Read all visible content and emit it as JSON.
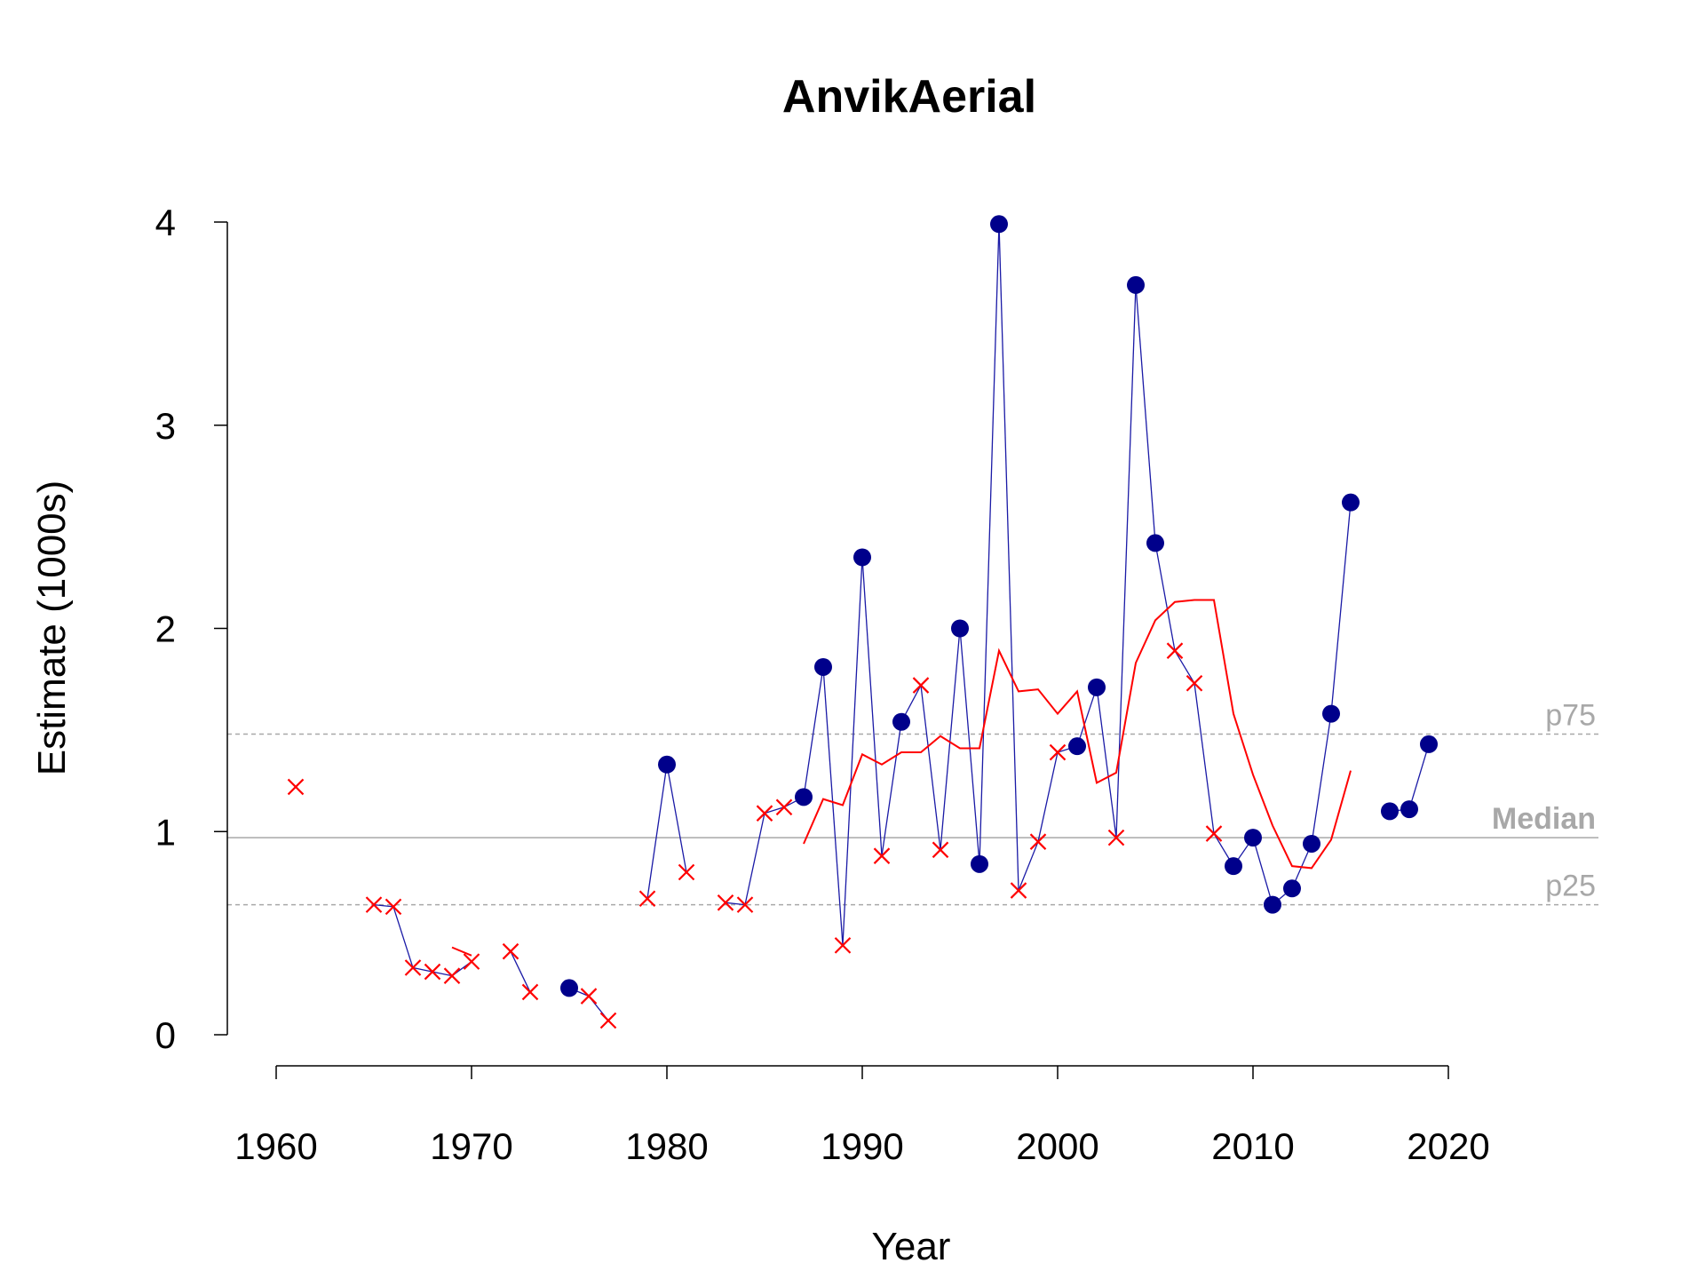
{
  "chart_data": {
    "type": "line",
    "title": "AnvikAerial",
    "xlabel": "Year",
    "ylabel": "Estimate (1000s)",
    "xlim": [
      1958,
      2028
    ],
    "ylim": [
      0,
      4
    ],
    "x_ticks": [
      1960,
      1970,
      1980,
      1990,
      2000,
      2010,
      2020
    ],
    "y_ticks": [
      0,
      1,
      2,
      3,
      4
    ],
    "colors": {
      "observed_line": "#1a1aa6",
      "full_count": "#00008b",
      "partial_count": "#ff0000",
      "running_average": "#ff0000",
      "reference": "#a8a8a8"
    },
    "reference_lines": [
      {
        "label": "p75",
        "value": 1.48,
        "style": "dashed",
        "bold": false
      },
      {
        "label": "Median",
        "value": 0.97,
        "style": "solid",
        "bold": true
      },
      {
        "label": "p25",
        "value": 0.64,
        "style": "dashed",
        "bold": false
      }
    ],
    "series": [
      {
        "kind": "observed",
        "points": [
          {
            "x": 1961,
            "y": 1.22,
            "marker": "x"
          },
          {
            "x": 1965,
            "y": 0.64,
            "marker": "x"
          },
          {
            "x": 1966,
            "y": 0.63,
            "marker": "x"
          },
          {
            "x": 1967,
            "y": 0.33,
            "marker": "x"
          },
          {
            "x": 1968,
            "y": 0.31,
            "marker": "x"
          },
          {
            "x": 1969,
            "y": 0.29,
            "marker": "x"
          },
          {
            "x": 1970,
            "y": 0.36,
            "marker": "x"
          },
          {
            "x": 1972,
            "y": 0.41,
            "marker": "x"
          },
          {
            "x": 1973,
            "y": 0.21,
            "marker": "x"
          },
          {
            "x": 1975,
            "y": 0.23,
            "marker": "dot"
          },
          {
            "x": 1976,
            "y": 0.19,
            "marker": "x"
          },
          {
            "x": 1977,
            "y": 0.07,
            "marker": "x"
          },
          {
            "x": 1979,
            "y": 0.67,
            "marker": "x"
          },
          {
            "x": 1980,
            "y": 1.33,
            "marker": "dot"
          },
          {
            "x": 1981,
            "y": 0.8,
            "marker": "x"
          },
          {
            "x": 1983,
            "y": 0.65,
            "marker": "x"
          },
          {
            "x": 1984,
            "y": 0.64,
            "marker": "x"
          },
          {
            "x": 1985,
            "y": 1.09,
            "marker": "x"
          },
          {
            "x": 1986,
            "y": 1.12,
            "marker": "x"
          },
          {
            "x": 1987,
            "y": 1.17,
            "marker": "dot"
          },
          {
            "x": 1988,
            "y": 1.81,
            "marker": "dot"
          },
          {
            "x": 1989,
            "y": 0.44,
            "marker": "x"
          },
          {
            "x": 1990,
            "y": 2.35,
            "marker": "dot"
          },
          {
            "x": 1991,
            "y": 0.88,
            "marker": "x"
          },
          {
            "x": 1992,
            "y": 1.54,
            "marker": "dot"
          },
          {
            "x": 1993,
            "y": 1.72,
            "marker": "x"
          },
          {
            "x": 1994,
            "y": 0.91,
            "marker": "x"
          },
          {
            "x": 1995,
            "y": 2.0,
            "marker": "dot"
          },
          {
            "x": 1996,
            "y": 0.84,
            "marker": "dot"
          },
          {
            "x": 1997,
            "y": 3.99,
            "marker": "dot"
          },
          {
            "x": 1998,
            "y": 0.71,
            "marker": "x"
          },
          {
            "x": 1999,
            "y": 0.95,
            "marker": "x"
          },
          {
            "x": 2000,
            "y": 1.39,
            "marker": "x"
          },
          {
            "x": 2001,
            "y": 1.42,
            "marker": "dot"
          },
          {
            "x": 2002,
            "y": 1.71,
            "marker": "dot"
          },
          {
            "x": 2003,
            "y": 0.97,
            "marker": "x"
          },
          {
            "x": 2004,
            "y": 3.69,
            "marker": "dot"
          },
          {
            "x": 2005,
            "y": 2.42,
            "marker": "dot"
          },
          {
            "x": 2006,
            "y": 1.89,
            "marker": "x"
          },
          {
            "x": 2007,
            "y": 1.73,
            "marker": "x"
          },
          {
            "x": 2008,
            "y": 0.99,
            "marker": "x"
          },
          {
            "x": 2009,
            "y": 0.83,
            "marker": "dot"
          },
          {
            "x": 2010,
            "y": 0.97,
            "marker": "dot"
          },
          {
            "x": 2011,
            "y": 0.64,
            "marker": "dot"
          },
          {
            "x": 2012,
            "y": 0.72,
            "marker": "dot"
          },
          {
            "x": 2013,
            "y": 0.94,
            "marker": "dot"
          },
          {
            "x": 2014,
            "y": 1.58,
            "marker": "dot"
          },
          {
            "x": 2015,
            "y": 2.62,
            "marker": "dot"
          },
          {
            "x": 2017,
            "y": 1.1,
            "marker": "dot"
          },
          {
            "x": 2018,
            "y": 1.11,
            "marker": "dot"
          },
          {
            "x": 2019,
            "y": 1.43,
            "marker": "dot"
          }
        ]
      },
      {
        "kind": "running-average",
        "segments": [
          [
            {
              "x": 1969,
              "y": 0.43
            },
            {
              "x": 1970,
              "y": 0.39
            }
          ],
          [
            {
              "x": 1987,
              "y": 0.94
            },
            {
              "x": 1988,
              "y": 1.16
            },
            {
              "x": 1989,
              "y": 1.13
            },
            {
              "x": 1990,
              "y": 1.38
            },
            {
              "x": 1991,
              "y": 1.33
            },
            {
              "x": 1992,
              "y": 1.39
            },
            {
              "x": 1993,
              "y": 1.39
            },
            {
              "x": 1994,
              "y": 1.47
            },
            {
              "x": 1995,
              "y": 1.41
            },
            {
              "x": 1996,
              "y": 1.41
            },
            {
              "x": 1997,
              "y": 1.89
            },
            {
              "x": 1998,
              "y": 1.69
            },
            {
              "x": 1999,
              "y": 1.7
            },
            {
              "x": 2000,
              "y": 1.58
            },
            {
              "x": 2001,
              "y": 1.69
            },
            {
              "x": 2002,
              "y": 1.24
            },
            {
              "x": 2003,
              "y": 1.29
            },
            {
              "x": 2004,
              "y": 1.83
            },
            {
              "x": 2005,
              "y": 2.04
            },
            {
              "x": 2006,
              "y": 2.13
            },
            {
              "x": 2007,
              "y": 2.14
            },
            {
              "x": 2008,
              "y": 2.14
            },
            {
              "x": 2009,
              "y": 1.58
            },
            {
              "x": 2010,
              "y": 1.28
            },
            {
              "x": 2011,
              "y": 1.03
            },
            {
              "x": 2012,
              "y": 0.83
            },
            {
              "x": 2013,
              "y": 0.82
            },
            {
              "x": 2014,
              "y": 0.96
            },
            {
              "x": 2015,
              "y": 1.3
            }
          ]
        ]
      }
    ]
  }
}
